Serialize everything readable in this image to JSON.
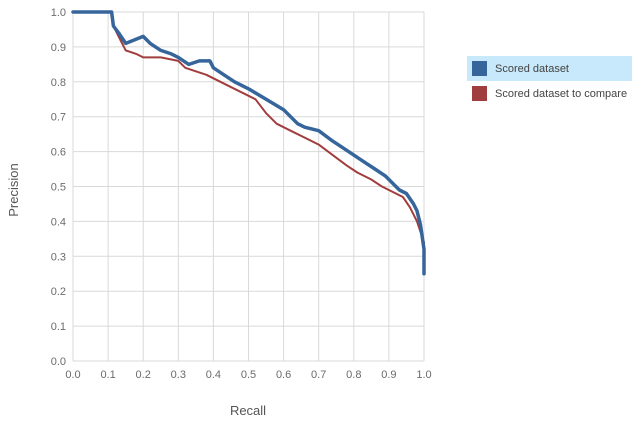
{
  "chart_data": {
    "type": "line",
    "xlabel": "Recall",
    "ylabel": "Precision",
    "xlim": [
      0.0,
      1.0
    ],
    "ylim": [
      0.0,
      1.0
    ],
    "xticks": [
      "0.0",
      "0.1",
      "0.2",
      "0.3",
      "0.4",
      "0.5",
      "0.6",
      "0.7",
      "0.8",
      "0.9",
      "1.0"
    ],
    "yticks": [
      "0.0",
      "0.1",
      "0.2",
      "0.3",
      "0.4",
      "0.5",
      "0.6",
      "0.7",
      "0.8",
      "0.9",
      "1.0"
    ],
    "grid": true,
    "legend_position": "right",
    "series": [
      {
        "name": "Scored dataset",
        "color": "#35659b",
        "highlighted": true,
        "x": [
          0.0,
          0.11,
          0.115,
          0.13,
          0.15,
          0.2,
          0.22,
          0.25,
          0.28,
          0.3,
          0.33,
          0.36,
          0.39,
          0.4,
          0.43,
          0.46,
          0.5,
          0.55,
          0.6,
          0.64,
          0.66,
          0.7,
          0.74,
          0.77,
          0.8,
          0.83,
          0.86,
          0.89,
          0.91,
          0.93,
          0.95,
          0.97,
          0.98,
          0.99,
          1.0,
          1.0
        ],
        "y": [
          1.0,
          1.0,
          0.96,
          0.94,
          0.91,
          0.93,
          0.91,
          0.89,
          0.88,
          0.87,
          0.85,
          0.86,
          0.86,
          0.84,
          0.82,
          0.8,
          0.78,
          0.75,
          0.72,
          0.68,
          0.67,
          0.66,
          0.63,
          0.61,
          0.59,
          0.57,
          0.55,
          0.53,
          0.51,
          0.49,
          0.48,
          0.45,
          0.43,
          0.39,
          0.32,
          0.25
        ]
      },
      {
        "name": "Scored dataset to compare",
        "color": "#a23d3d",
        "highlighted": false,
        "x": [
          0.0,
          0.11,
          0.115,
          0.13,
          0.15,
          0.18,
          0.2,
          0.25,
          0.3,
          0.32,
          0.35,
          0.38,
          0.4,
          0.44,
          0.48,
          0.52,
          0.55,
          0.58,
          0.62,
          0.66,
          0.7,
          0.74,
          0.78,
          0.81,
          0.85,
          0.88,
          0.9,
          0.92,
          0.94,
          0.96,
          0.98,
          1.0,
          1.0
        ],
        "y": [
          1.0,
          1.0,
          0.96,
          0.93,
          0.89,
          0.88,
          0.87,
          0.87,
          0.86,
          0.84,
          0.83,
          0.82,
          0.81,
          0.79,
          0.77,
          0.75,
          0.71,
          0.68,
          0.66,
          0.64,
          0.62,
          0.59,
          0.56,
          0.54,
          0.52,
          0.5,
          0.49,
          0.48,
          0.47,
          0.44,
          0.4,
          0.34,
          0.25
        ]
      }
    ]
  },
  "legend": {
    "items": [
      {
        "label": "Scored dataset",
        "color": "#35659b"
      },
      {
        "label": "Scored dataset to compare",
        "color": "#a23d3d"
      }
    ]
  }
}
